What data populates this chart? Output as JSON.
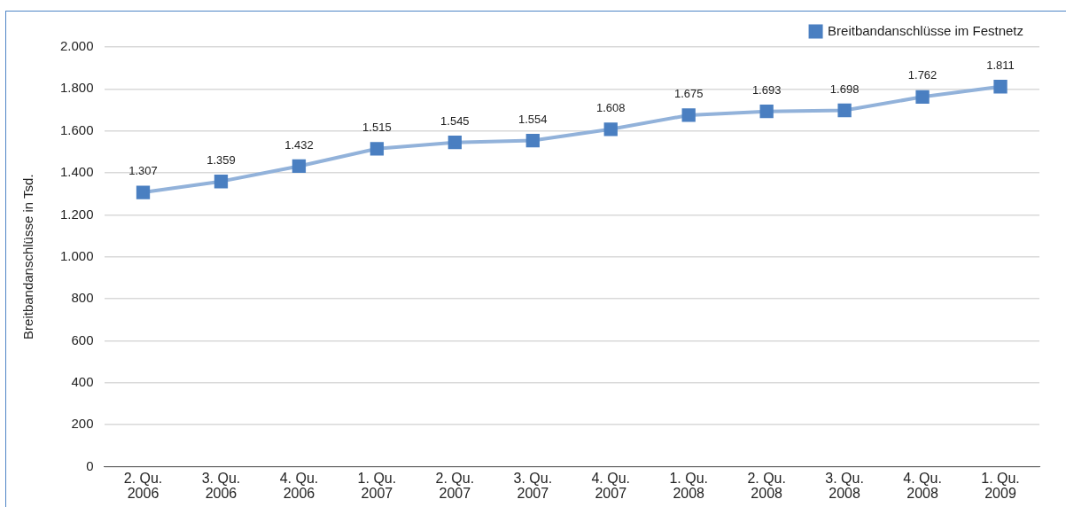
{
  "chart_data": {
    "type": "line",
    "ylabel": "Breitbandanschlüsse in Tsd.",
    "categories": [
      "2. Qu. 2006",
      "3. Qu. 2006",
      "4. Qu. 2006",
      "1. Qu. 2007",
      "2. Qu. 2007",
      "3. Qu. 2007",
      "4. Qu. 2007",
      "1. Qu. 2008",
      "2. Qu. 2008",
      "3. Qu. 2008",
      "4. Qu. 2008",
      "1. Qu. 2009"
    ],
    "series": [
      {
        "name": "Breitbandanschlüsse im Festnetz",
        "color": "#4a7fc1",
        "values": [
          1307,
          1359,
          1432,
          1515,
          1545,
          1554,
          1608,
          1675,
          1693,
          1698,
          1762,
          1811
        ],
        "value_labels": [
          "1.307",
          "1.359",
          "1.432",
          "1.515",
          "1.545",
          "1.554",
          "1.608",
          "1.675",
          "1.693",
          "1.698",
          "1.762",
          "1.811"
        ]
      }
    ],
    "ylim": [
      0,
      2000
    ],
    "yticks": [
      0,
      200,
      400,
      600,
      800,
      {
        "value": 1000,
        "label": "1.000"
      },
      {
        "value": 1200,
        "label": "1.200"
      },
      {
        "value": 1400,
        "label": "1.400"
      },
      {
        "value": 1600,
        "label": "1.600"
      },
      {
        "value": 1800,
        "label": "1.800"
      },
      {
        "value": 2000,
        "label": "2.000"
      }
    ],
    "grid": "y",
    "legend": "top right",
    "marker": "square",
    "line_style": "solid"
  }
}
